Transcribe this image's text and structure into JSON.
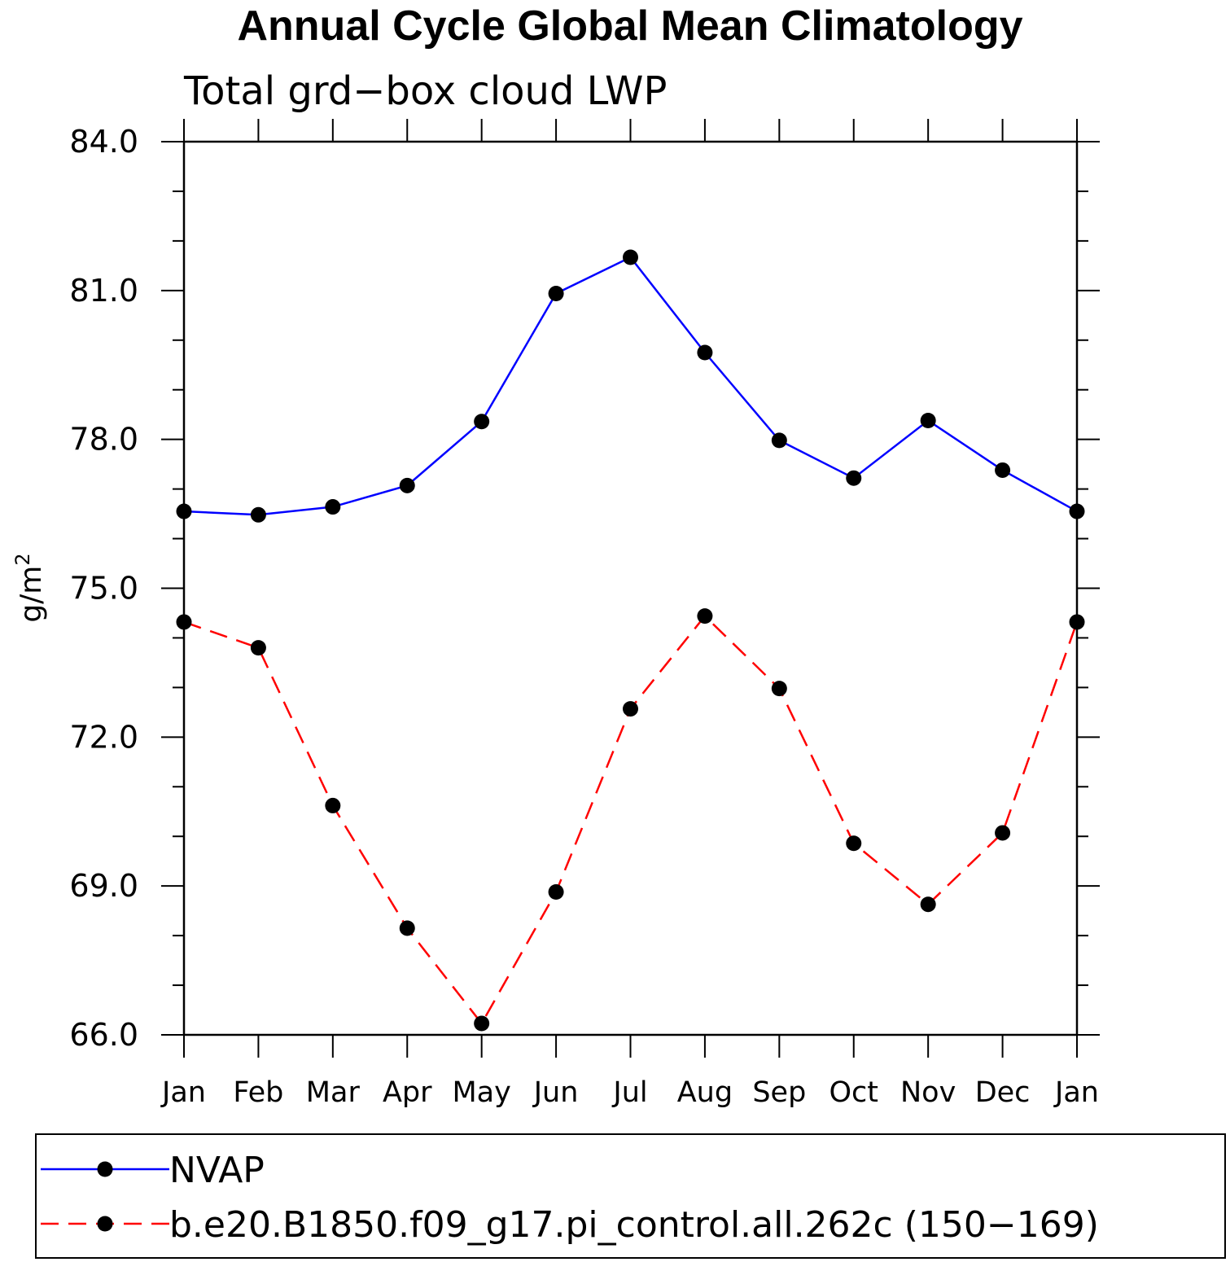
{
  "chart_data": {
    "type": "line",
    "title": "Annual Cycle Global Mean Climatology",
    "subtitle": "Total grd−box cloud LWP",
    "ylabel": "g/m",
    "ylabel_superscript": "2",
    "xlabel": "",
    "categories": [
      "Jan",
      "Feb",
      "Mar",
      "Apr",
      "May",
      "Jun",
      "Jul",
      "Aug",
      "Sep",
      "Oct",
      "Nov",
      "Dec",
      "Jan"
    ],
    "ylim": [
      66.0,
      84.0
    ],
    "yticks": [
      "66.0",
      "69.0",
      "72.0",
      "75.0",
      "78.0",
      "81.0",
      "84.0"
    ],
    "y_minor_step": 1.0,
    "legend_position": "bottom",
    "series": [
      {
        "name": "NVAP",
        "color": "#0000ff",
        "dash": "solid",
        "marker": "filled-circle",
        "values": [
          76.55,
          76.48,
          76.64,
          77.07,
          78.36,
          80.94,
          81.67,
          79.75,
          77.98,
          77.22,
          78.38,
          77.38,
          76.55
        ]
      },
      {
        "name": "b.e20.B1850.f09_g17.pi_control.all.262c (150−169)",
        "color": "#ff0000",
        "dash": "dashed",
        "marker": "filled-circle",
        "values": [
          74.32,
          73.8,
          70.62,
          68.15,
          66.23,
          68.88,
          72.57,
          74.44,
          72.98,
          69.86,
          68.63,
          70.07,
          74.32
        ]
      }
    ]
  }
}
